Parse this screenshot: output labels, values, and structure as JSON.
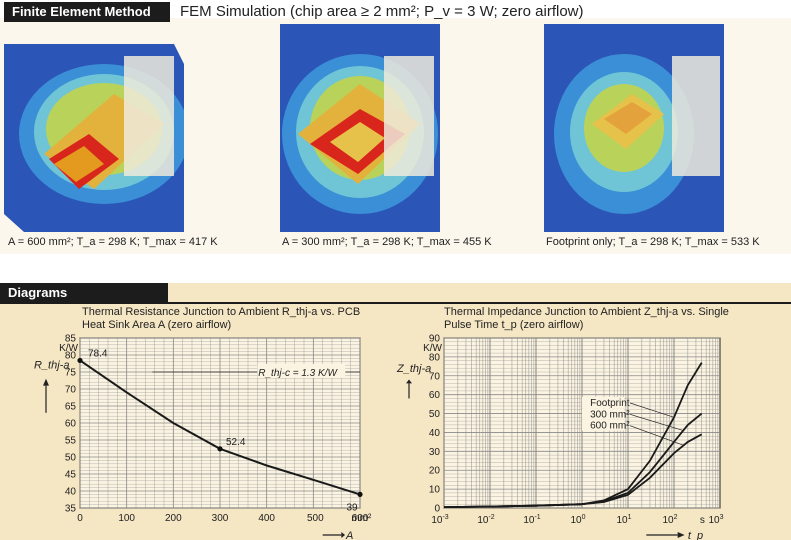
{
  "header": {
    "section_fem": "Finite Element Method",
    "fem_title": "FEM Simulation (chip area ≥ 2 mm²; P_v = 3 W; zero airflow)",
    "section_diagrams": "Diagrams"
  },
  "fem_panels": [
    {
      "caption": "A = 600 mm²; T_a = 298 K; T_max = 417 K"
    },
    {
      "caption": "A = 300 mm²; T_a = 298 K; T_max = 455 K"
    },
    {
      "caption": "Footprint only; T_a = 298 K; T_max = 533 K"
    }
  ],
  "colors": {
    "hot": "#d8261c",
    "warm": "#e39a1e",
    "mid": "#b9d25a",
    "cool": "#6fc5d6",
    "cold": "#2b56b8",
    "line": "#1a1a1a"
  },
  "chart_data": [
    {
      "type": "line",
      "title": "Thermal Resistance Junction to Ambient R_thj-a vs. PCB Heat Sink Area A (zero airflow)",
      "xlabel": "A",
      "x_unit": "mm²",
      "ylabel": "R_thj-a",
      "y_unit": "K/W",
      "xlim": [
        0,
        600
      ],
      "ylim": [
        35,
        85
      ],
      "x_ticks": [
        0,
        100,
        200,
        300,
        400,
        500,
        600
      ],
      "y_ticks": [
        35,
        40,
        45,
        50,
        55,
        60,
        65,
        70,
        75,
        80,
        85
      ],
      "grid": true,
      "series": [
        {
          "x": [
            0,
            100,
            200,
            300,
            400,
            500,
            600
          ],
          "y": [
            78.4,
            69.0,
            60.0,
            52.4,
            47.5,
            43.3,
            39.0
          ]
        }
      ],
      "data_labels": [
        {
          "x": 0,
          "y": 78.4,
          "text": "78.4"
        },
        {
          "x": 300,
          "y": 52.4,
          "text": "52.4"
        },
        {
          "x": 600,
          "y": 39,
          "text": "39"
        }
      ],
      "reference": {
        "y": 1.3,
        "text": "R_thj-c = 1.3 K/W"
      }
    },
    {
      "type": "line",
      "title": "Thermal Impedance Junction to Ambient Z_thj-a vs. Single Pulse Time t_p (zero airflow)",
      "xlabel": "t_p",
      "x_unit": "s",
      "ylabel": "Z_thj-a",
      "y_unit": "K/W",
      "x_scale": "log",
      "xlim": [
        0.001,
        1000
      ],
      "ylim": [
        0,
        90
      ],
      "x_ticks": [
        "10^-3",
        "10^-2",
        "10^-1",
        "10^0",
        "10^1",
        "10^2",
        "10^3"
      ],
      "y_ticks": [
        0,
        10,
        20,
        30,
        40,
        50,
        60,
        70,
        80,
        90
      ],
      "grid": true,
      "legend": [
        "Footprint",
        "300 mm²",
        "600 mm²"
      ],
      "series": [
        {
          "name": "Footprint",
          "x": [
            0.001,
            0.01,
            0.1,
            1,
            3,
            10,
            30,
            100,
            200,
            400
          ],
          "y": [
            0.5,
            0.8,
            1.2,
            2.0,
            4.0,
            10.0,
            25.0,
            48.0,
            65.0,
            77.0
          ]
        },
        {
          "name": "300 mm²",
          "x": [
            0.001,
            0.01,
            0.1,
            1,
            3,
            10,
            30,
            100,
            200,
            400
          ],
          "y": [
            0.5,
            0.8,
            1.2,
            2.0,
            3.5,
            8.0,
            19.0,
            35.0,
            44.0,
            50.0
          ]
        },
        {
          "name": "600 mm²",
          "x": [
            0.001,
            0.01,
            0.1,
            1,
            3,
            10,
            30,
            100,
            200,
            400
          ],
          "y": [
            0.5,
            0.8,
            1.2,
            2.0,
            3.2,
            7.0,
            16.0,
            29.0,
            35.0,
            39.0
          ]
        }
      ]
    }
  ]
}
